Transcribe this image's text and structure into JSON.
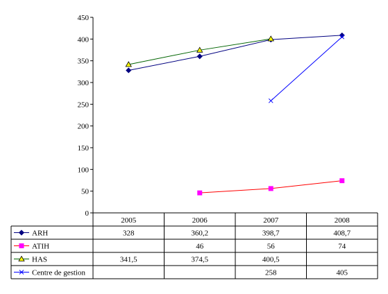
{
  "chart_data": {
    "type": "line",
    "categories": [
      "2005",
      "2006",
      "2007",
      "2008"
    ],
    "ylim": [
      0,
      450
    ],
    "ytick_step": 50,
    "grid": false,
    "legend": "table-below",
    "series": [
      {
        "name": "ARH",
        "values": [
          328,
          360.2,
          398.7,
          408.7
        ],
        "labels": [
          "328",
          "360,2",
          "398,7",
          "408,7"
        ],
        "color": "#000080",
        "marker": "diamond",
        "marker_fill": "#000080"
      },
      {
        "name": "ATIH",
        "values": [
          null,
          46,
          56,
          74
        ],
        "labels": [
          "",
          "46",
          "56",
          "74"
        ],
        "color": "#ff0000",
        "marker": "square",
        "marker_fill": "#ff00ff"
      },
      {
        "name": "HAS",
        "values": [
          341.5,
          374.5,
          400.5,
          null
        ],
        "labels": [
          "341,5",
          "374,5",
          "400,5",
          ""
        ],
        "color": "#006400",
        "marker": "triangle",
        "marker_fill": "#ffff00"
      },
      {
        "name": "Centre de gestion",
        "values": [
          null,
          null,
          258,
          405
        ],
        "labels": [
          "",
          "",
          "258",
          "405"
        ],
        "color": "#0000ff",
        "marker": "x",
        "marker_fill": "#0000ff"
      }
    ]
  }
}
